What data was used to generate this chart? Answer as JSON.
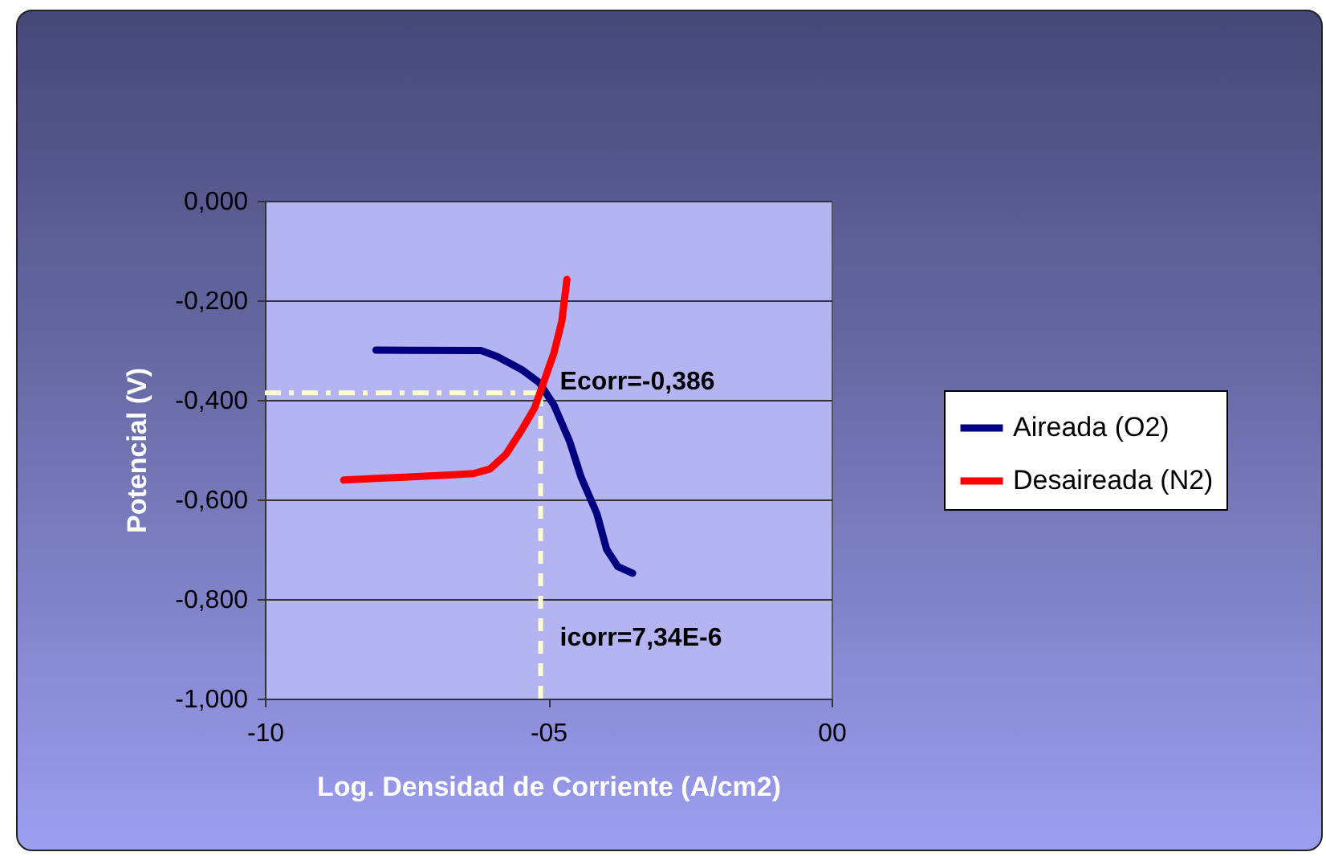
{
  "chart_data": {
    "type": "line",
    "xlabel": "Log. Densidad de Corriente (A/cm2)",
    "ylabel": "Potencial (V)",
    "xlim": [
      -10,
      0
    ],
    "xticks": [
      -10,
      {
        "value": -5,
        "label": "-05"
      },
      {
        "value": 0,
        "label": "00"
      }
    ],
    "ylim": [
      -1,
      0
    ],
    "yticks": [
      {
        "value": 0,
        "label": "0,000"
      },
      {
        "value": -0.2,
        "label": "-0,200"
      },
      {
        "value": -0.4,
        "label": "-0,400"
      },
      {
        "value": -0.6,
        "label": "-0,600"
      },
      {
        "value": -0.8,
        "label": "-0,800"
      },
      {
        "value": -1,
        "label": "-1,000"
      }
    ],
    "grid": "y",
    "legend": "right",
    "marker": "none",
    "line_style": "solid",
    "series": [
      {
        "name": "Aireada (O2)",
        "color": "#000080",
        "x": [
          -8.04,
          -6.18,
          -5.9,
          -5.47,
          -5.16,
          -4.9,
          -4.62,
          -4.42,
          -4.14,
          -3.97,
          -3.77,
          -3.51
        ],
        "values": [
          -0.3,
          -0.301,
          -0.313,
          -0.339,
          -0.365,
          -0.41,
          -0.484,
          -0.555,
          -0.629,
          -0.7,
          -0.735,
          -0.748
        ]
      },
      {
        "name": "Desaireada (N2)",
        "color": "#ff0000",
        "x": [
          -8.61,
          -7.88,
          -6.74,
          -6.32,
          -6.03,
          -5.75,
          -5.47,
          -5.24,
          -5.1,
          -4.9,
          -4.76,
          -4.67
        ],
        "values": [
          -0.561,
          -0.557,
          -0.551,
          -0.548,
          -0.539,
          -0.51,
          -0.461,
          -0.416,
          -0.371,
          -0.306,
          -0.242,
          -0.158
        ]
      }
    ],
    "ref_lines": [
      {
        "axis": "y",
        "value": -0.386,
        "color": "#ffffcc",
        "line_style": "dashdot"
      },
      {
        "axis": "x",
        "value": -5.134,
        "color": "#ffffcc",
        "line_style": "dashed"
      }
    ],
    "annotations": [
      {
        "text": "Ecorr=-0,386",
        "x": -5.134,
        "y": -0.386
      },
      {
        "text": "icorr=7,34E-6",
        "x": -5.134,
        "y": -0.9
      }
    ]
  }
}
